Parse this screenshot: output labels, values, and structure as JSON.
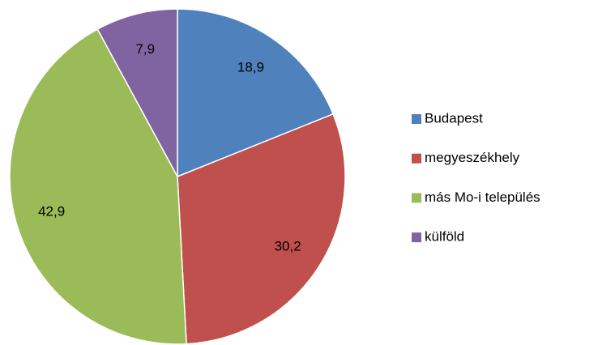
{
  "chart_data": {
    "type": "pie",
    "categories": [
      "Budapest",
      "megyeszékhely",
      "más Mo-i település",
      "külföld"
    ],
    "values": [
      18.9,
      30.2,
      42.9,
      7.9
    ],
    "value_labels": [
      "18,9",
      "30,2",
      "42,9",
      "7,9"
    ],
    "colors": [
      "#4f81bd",
      "#c0504d",
      "#9bbb59",
      "#8064a2"
    ],
    "legend": "right"
  }
}
